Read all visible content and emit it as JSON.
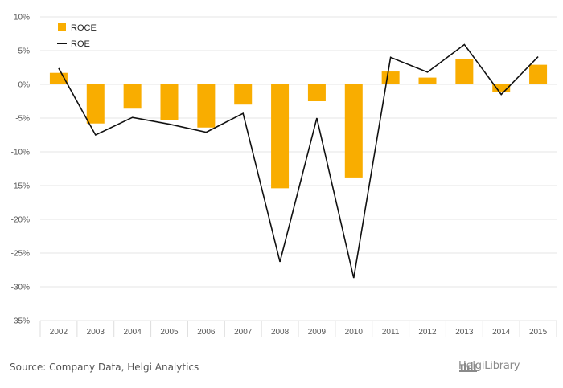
{
  "chart_data": {
    "type": "bar",
    "categories": [
      "2002",
      "2003",
      "2004",
      "2005",
      "2006",
      "2007",
      "2008",
      "2009",
      "2010",
      "2011",
      "2012",
      "2013",
      "2014",
      "2015"
    ],
    "series": [
      {
        "name": "ROCE",
        "type": "bar",
        "color": "#f9ad00",
        "values": [
          1.7,
          -5.8,
          -3.6,
          -5.3,
          -6.4,
          -3.0,
          -15.4,
          -2.5,
          -13.8,
          1.9,
          1.0,
          3.7,
          -1.1,
          2.9
        ]
      },
      {
        "name": "ROE",
        "type": "line",
        "color": "#111111",
        "values": [
          2.4,
          -7.5,
          -4.9,
          -5.9,
          -7.1,
          -4.3,
          -26.3,
          -5.0,
          -28.7,
          4.0,
          1.8,
          5.9,
          -1.5,
          4.1
        ]
      }
    ],
    "yticks": [
      "10%",
      "5%",
      "0%",
      "-5%",
      "-10%",
      "-15%",
      "-20%",
      "-25%",
      "-30%",
      "-35%"
    ],
    "ylim": [
      -35,
      10
    ],
    "grid": true,
    "legend_position": "top-left",
    "source": "Source: Company Data, Helgi Analytics",
    "brand": "HelgiLibrary"
  }
}
